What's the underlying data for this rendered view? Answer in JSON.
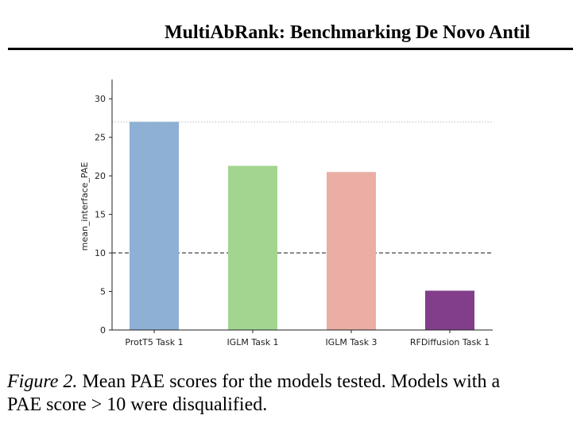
{
  "header": {
    "running_title": "MultiAbRank: Benchmarking De Novo Antil"
  },
  "figure": {
    "caption_label": "Figure 2.",
    "caption_line1": "Mean PAE scores for the models tested. Models with a",
    "caption_line2": "PAE score > 10 were disqualified."
  },
  "chart_data": {
    "type": "bar",
    "categories": [
      "ProtT5 Task 1",
      "IGLM Task 1",
      "IGLM Task 3",
      "RFDiffusion Task 1"
    ],
    "values": [
      27.0,
      21.3,
      20.5,
      5.1
    ],
    "colors": [
      "#8eb0d5",
      "#a3d591",
      "#ebaea4",
      "#823e8b"
    ],
    "title": "",
    "xlabel": "",
    "ylabel": "mean_interface_PAE",
    "ylim": [
      0,
      32.5
    ],
    "yticks": [
      0,
      5,
      10,
      15,
      20,
      25,
      30
    ],
    "grid": false,
    "reference_lines": [
      {
        "y": 10,
        "style": "dashed",
        "color": "#555555"
      },
      {
        "y": 27,
        "style": "dotted",
        "color": "#bbbbbb"
      }
    ]
  }
}
